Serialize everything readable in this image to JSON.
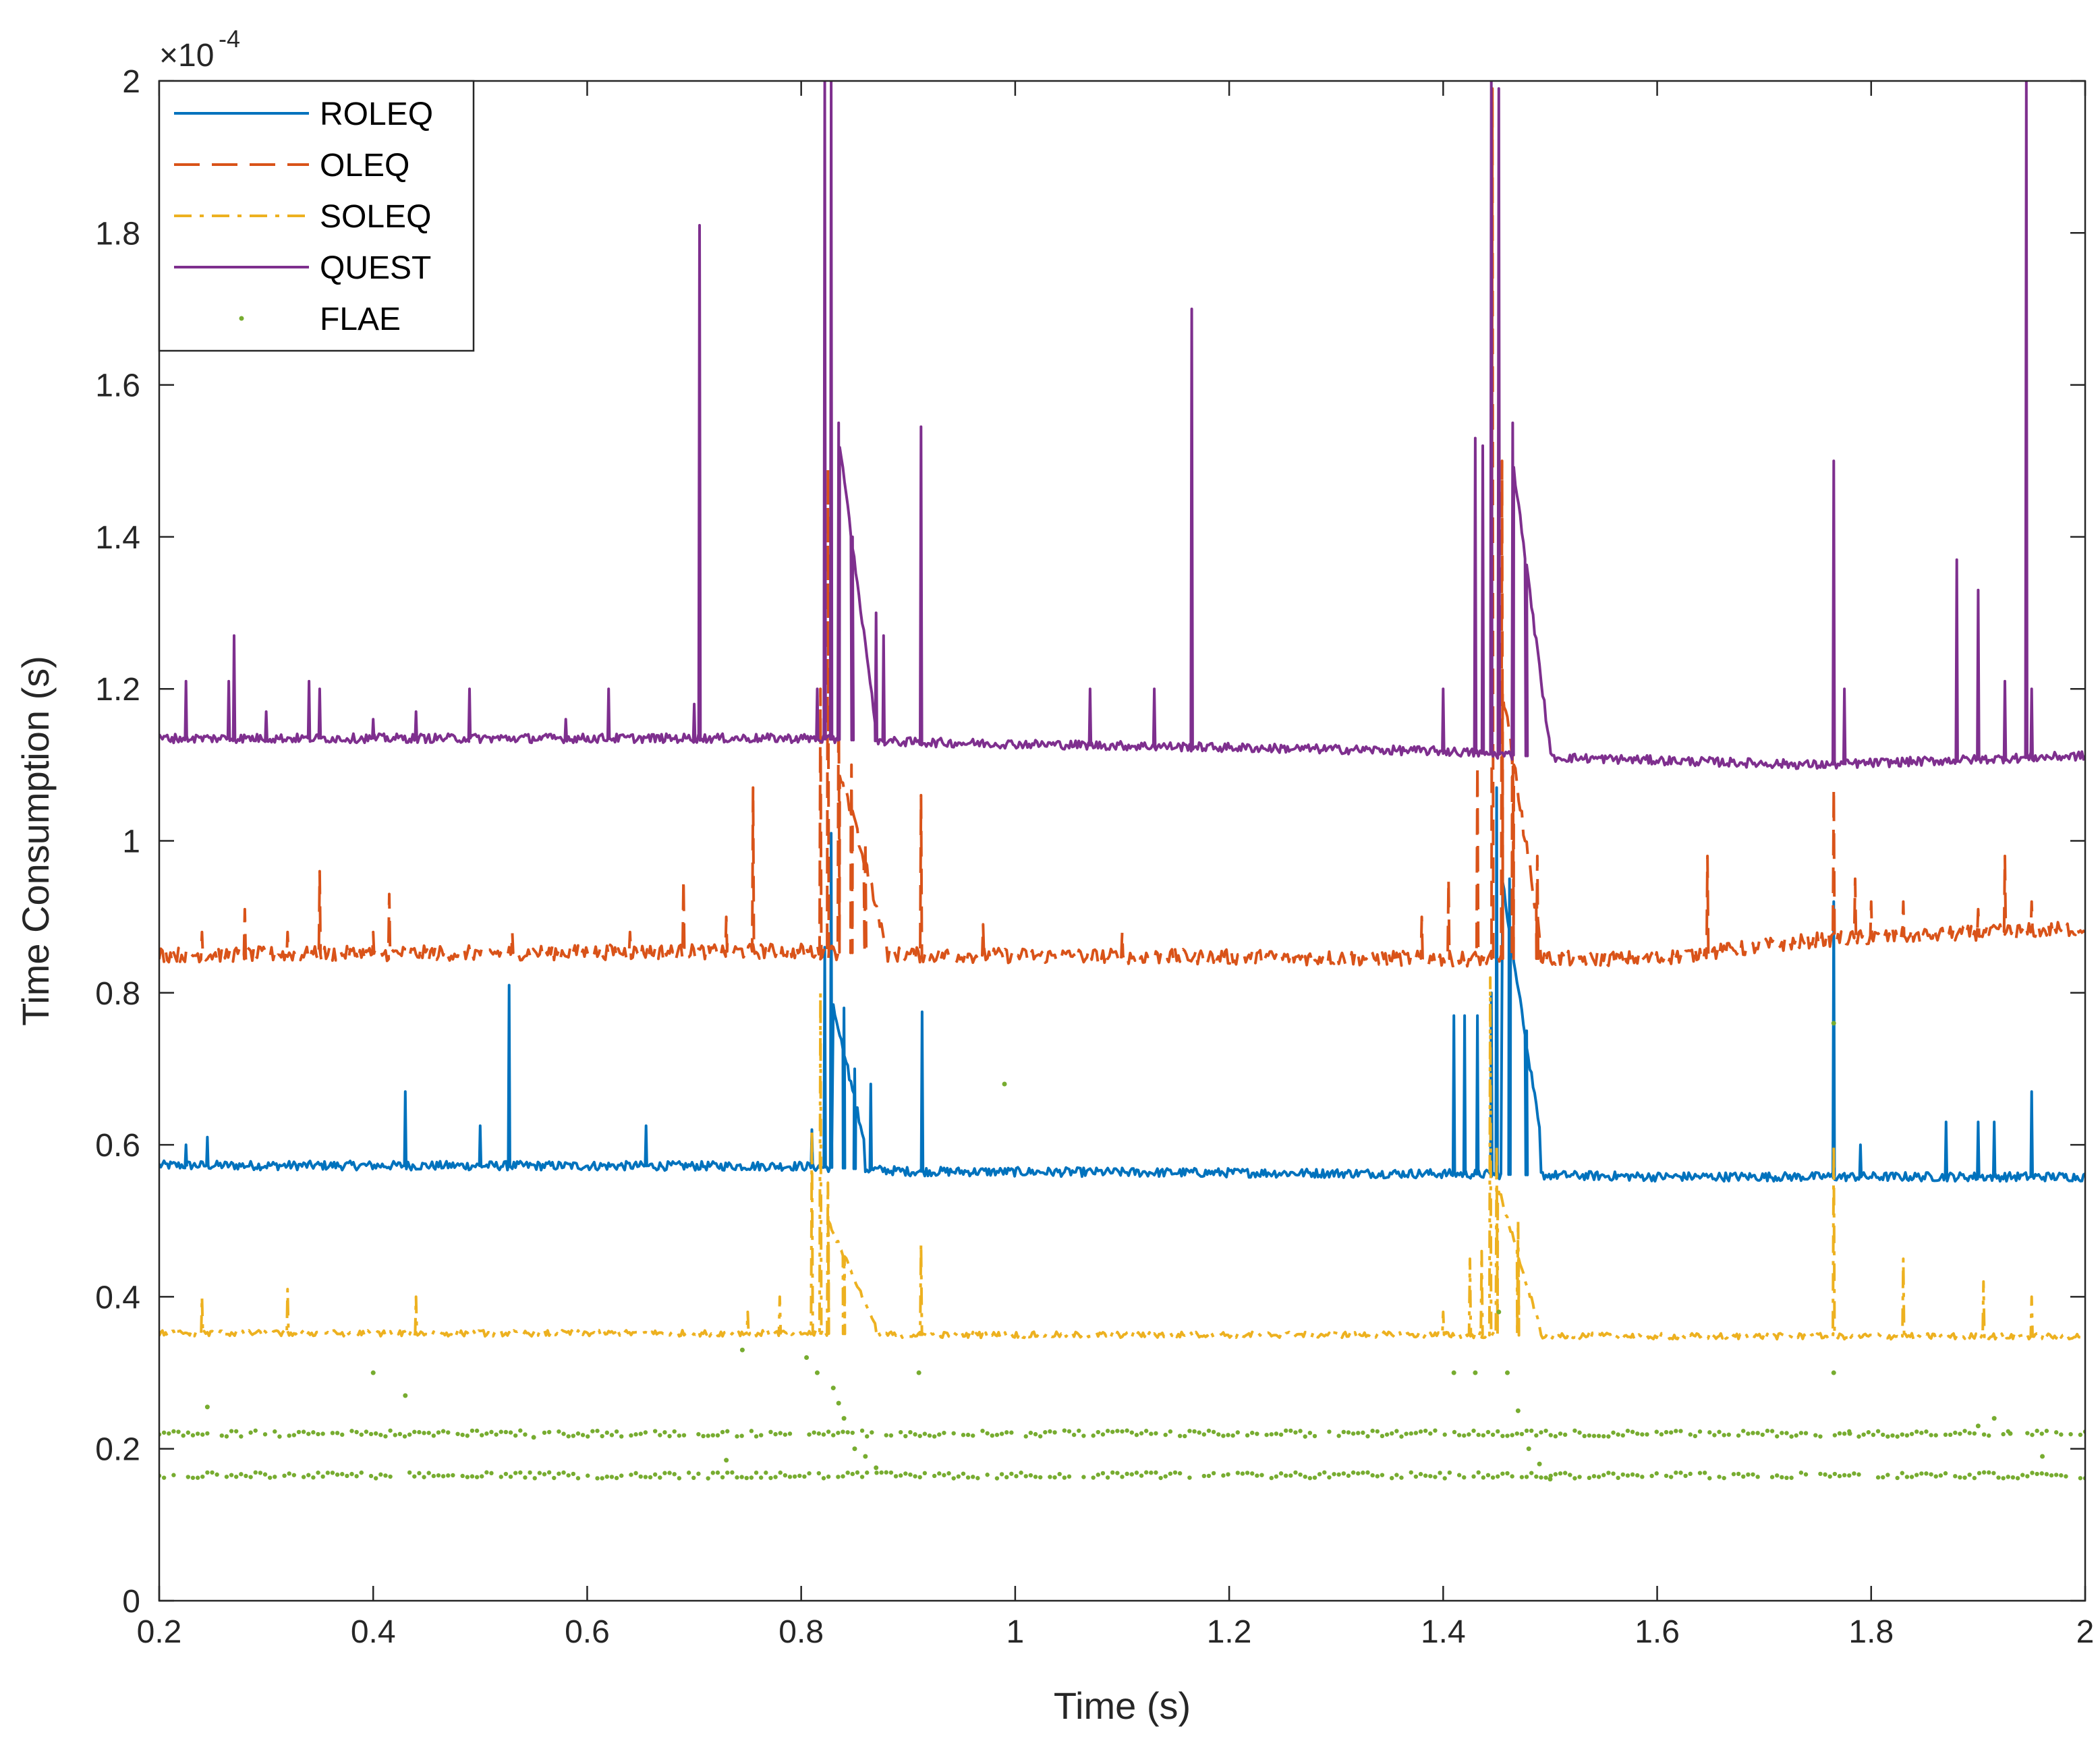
{
  "chart_data": {
    "type": "line",
    "title": "",
    "xlabel": "Time (s)",
    "ylabel": "Time Consumption (s)",
    "xlim": [
      0.2,
      2
    ],
    "ylim": [
      0,
      2
    ],
    "y_exponent_label": "×10",
    "y_exponent_power": "-4",
    "x_ticks": [
      0.2,
      0.4,
      0.6,
      0.8,
      1,
      1.2,
      1.4,
      1.6,
      1.8,
      2
    ],
    "x_tick_labels": [
      "0.2",
      "0.4",
      "0.6",
      "0.8",
      "1",
      "1.2",
      "1.4",
      "1.6",
      "1.8",
      "2"
    ],
    "y_ticks": [
      0,
      0.2,
      0.4,
      0.6,
      0.8,
      1,
      1.2,
      1.4,
      1.6,
      1.8,
      2
    ],
    "y_tick_labels": [
      "0",
      "0.2",
      "0.4",
      "0.6",
      "0.8",
      "1",
      "1.2",
      "1.4",
      "1.6",
      "1.8",
      "2"
    ],
    "grid": false,
    "legend_position": "top-left",
    "series": [
      {
        "name": "ROLEQ",
        "color": "#0072BD",
        "style": "solid",
        "baseline": [
          [
            0.2,
            0.573
          ],
          [
            0.8,
            0.572
          ],
          [
            0.9,
            0.565
          ],
          [
            1.4,
            0.562
          ],
          [
            1.6,
            0.558
          ],
          [
            2.0,
            0.558
          ]
        ],
        "noise": 0.006,
        "spikes": [
          [
            0.225,
            0.6
          ],
          [
            0.245,
            0.61
          ],
          [
            0.43,
            0.67
          ],
          [
            0.5,
            0.625
          ],
          [
            0.527,
            0.81
          ],
          [
            0.655,
            0.625
          ],
          [
            0.81,
            0.62
          ],
          [
            0.822,
            0.86
          ],
          [
            0.828,
            1.01
          ],
          [
            0.84,
            0.78
          ],
          [
            0.85,
            0.7
          ],
          [
            0.865,
            0.68
          ],
          [
            0.913,
            0.775
          ],
          [
            1.41,
            0.77
          ],
          [
            1.42,
            0.77
          ],
          [
            1.432,
            0.77
          ],
          [
            1.445,
            0.8
          ],
          [
            1.45,
            1.07
          ],
          [
            1.462,
            0.95
          ],
          [
            1.478,
            0.75
          ],
          [
            1.765,
            0.92
          ],
          [
            1.79,
            0.6
          ],
          [
            1.87,
            0.63
          ],
          [
            1.9,
            0.63
          ],
          [
            1.915,
            0.63
          ],
          [
            1.95,
            0.67
          ]
        ],
        "ramps": [
          [
            0.83,
            0.86,
            0.78,
            0.6
          ],
          [
            1.455,
            1.49,
            0.95,
            0.62
          ]
        ]
      },
      {
        "name": "OLEQ",
        "color": "#D95319",
        "style": "dashed",
        "baseline": [
          [
            0.2,
            0.85
          ],
          [
            0.8,
            0.855
          ],
          [
            0.9,
            0.85
          ],
          [
            1.4,
            0.845
          ],
          [
            1.6,
            0.845
          ],
          [
            1.75,
            0.87
          ],
          [
            2.0,
            0.885
          ]
        ],
        "noise": 0.01,
        "spikes": [
          [
            0.24,
            0.88
          ],
          [
            0.28,
            0.91
          ],
          [
            0.32,
            0.88
          ],
          [
            0.35,
            0.96
          ],
          [
            0.4,
            0.88
          ],
          [
            0.415,
            0.93
          ],
          [
            0.53,
            0.88
          ],
          [
            0.64,
            0.88
          ],
          [
            0.69,
            0.95
          ],
          [
            0.73,
            0.9
          ],
          [
            0.755,
            1.07
          ],
          [
            0.818,
            1.2
          ],
          [
            0.825,
            1.49
          ],
          [
            0.835,
            1.25
          ],
          [
            0.847,
            1.1
          ],
          [
            0.86,
            1.0
          ],
          [
            0.912,
            1.06
          ],
          [
            0.97,
            0.89
          ],
          [
            1.1,
            0.88
          ],
          [
            1.38,
            0.9
          ],
          [
            1.405,
            0.95
          ],
          [
            1.432,
            1.1
          ],
          [
            1.446,
            1.99
          ],
          [
            1.455,
            1.5
          ],
          [
            1.465,
            1.2
          ],
          [
            1.488,
            0.98
          ],
          [
            1.647,
            0.98
          ],
          [
            1.765,
            1.07
          ],
          [
            1.785,
            0.95
          ],
          [
            1.8,
            0.92
          ],
          [
            1.83,
            0.92
          ],
          [
            1.9,
            0.91
          ],
          [
            1.925,
            0.98
          ],
          [
            1.95,
            0.92
          ]
        ],
        "ramps": [
          [
            0.835,
            0.88,
            1.1,
            0.86
          ],
          [
            1.455,
            1.49,
            1.2,
            0.88
          ]
        ]
      },
      {
        "name": "SOLEQ",
        "color": "#EDB120",
        "style": "dashdot",
        "baseline": [
          [
            0.2,
            0.352
          ],
          [
            0.8,
            0.352
          ],
          [
            0.9,
            0.35
          ],
          [
            1.4,
            0.35
          ],
          [
            1.6,
            0.348
          ],
          [
            2.0,
            0.348
          ]
        ],
        "noise": 0.004,
        "spikes": [
          [
            0.24,
            0.4
          ],
          [
            0.32,
            0.41
          ],
          [
            0.44,
            0.4
          ],
          [
            0.75,
            0.38
          ],
          [
            0.78,
            0.4
          ],
          [
            0.81,
            0.62
          ],
          [
            0.818,
            0.8
          ],
          [
            0.825,
            0.55
          ],
          [
            0.84,
            0.45
          ],
          [
            0.912,
            0.47
          ],
          [
            1.4,
            0.38
          ],
          [
            1.425,
            0.45
          ],
          [
            1.436,
            0.46
          ],
          [
            1.444,
            0.82
          ],
          [
            1.45,
            0.6
          ],
          [
            1.47,
            0.5
          ],
          [
            1.765,
            0.6
          ],
          [
            1.83,
            0.45
          ],
          [
            1.905,
            0.42
          ],
          [
            1.95,
            0.4
          ]
        ],
        "ramps": [
          [
            0.825,
            0.87,
            0.5,
            0.36
          ],
          [
            1.45,
            1.49,
            0.55,
            0.36
          ]
        ]
      },
      {
        "name": "QUEST",
        "color": "#7E2F8E",
        "style": "solid",
        "baseline": [
          [
            0.2,
            1.135
          ],
          [
            0.8,
            1.135
          ],
          [
            0.9,
            1.13
          ],
          [
            1.4,
            1.118
          ],
          [
            1.5,
            1.11
          ],
          [
            1.75,
            1.1
          ],
          [
            2.0,
            1.112
          ]
        ],
        "noise": 0.006,
        "spikes": [
          [
            0.225,
            1.21
          ],
          [
            0.265,
            1.21
          ],
          [
            0.27,
            1.27
          ],
          [
            0.3,
            1.17
          ],
          [
            0.34,
            1.21
          ],
          [
            0.35,
            1.2
          ],
          [
            0.4,
            1.16
          ],
          [
            0.44,
            1.17
          ],
          [
            0.49,
            1.2
          ],
          [
            0.58,
            1.16
          ],
          [
            0.62,
            1.2
          ],
          [
            0.7,
            1.18
          ],
          [
            0.705,
            1.81
          ],
          [
            0.815,
            1.2
          ],
          [
            0.822,
            2.0
          ],
          [
            0.828,
            2.0
          ],
          [
            0.835,
            1.55
          ],
          [
            0.848,
            1.4
          ],
          [
            0.87,
            1.3
          ],
          [
            0.877,
            1.27
          ],
          [
            0.912,
            1.545
          ],
          [
            1.07,
            1.2
          ],
          [
            1.13,
            1.2
          ],
          [
            1.165,
            1.7
          ],
          [
            1.4,
            1.2
          ],
          [
            1.43,
            1.53
          ],
          [
            1.437,
            1.52
          ],
          [
            1.445,
            2.0
          ],
          [
            1.452,
            1.99
          ],
          [
            1.465,
            1.55
          ],
          [
            1.478,
            1.3
          ],
          [
            1.765,
            1.5
          ],
          [
            1.775,
            1.2
          ],
          [
            1.88,
            1.37
          ],
          [
            1.9,
            1.33
          ],
          [
            1.925,
            1.21
          ],
          [
            1.945,
            2.0
          ],
          [
            1.95,
            1.2
          ]
        ],
        "ramps": [
          [
            0.835,
            0.87,
            1.53,
            1.15
          ],
          [
            1.465,
            1.5,
            1.5,
            1.12
          ]
        ]
      },
      {
        "name": "FLAE",
        "color": "#77AC30",
        "style": "points",
        "bands": [
          0.22,
          0.165
        ],
        "bands_range": [
          0.2,
          2.0
        ],
        "scatter": [
          [
            0.245,
            0.255
          ],
          [
            0.4,
            0.3
          ],
          [
            0.43,
            0.27
          ],
          [
            0.55,
            0.215
          ],
          [
            0.73,
            0.185
          ],
          [
            0.745,
            0.33
          ],
          [
            0.805,
            0.32
          ],
          [
            0.815,
            0.3
          ],
          [
            0.83,
            0.28
          ],
          [
            0.835,
            0.26
          ],
          [
            0.84,
            0.24
          ],
          [
            0.85,
            0.2
          ],
          [
            0.86,
            0.19
          ],
          [
            0.87,
            0.175
          ],
          [
            0.91,
            0.3
          ],
          [
            0.99,
            0.68
          ],
          [
            1.41,
            0.3
          ],
          [
            1.43,
            0.3
          ],
          [
            1.452,
            0.38
          ],
          [
            1.46,
            0.3
          ],
          [
            1.47,
            0.25
          ],
          [
            1.48,
            0.2
          ],
          [
            1.49,
            0.18
          ],
          [
            1.5,
            0.16
          ],
          [
            1.765,
            0.76
          ],
          [
            1.765,
            0.3
          ],
          [
            1.78,
            0.22
          ],
          [
            1.9,
            0.23
          ],
          [
            1.915,
            0.24
          ],
          [
            1.93,
            0.22
          ],
          [
            1.96,
            0.19
          ]
        ]
      }
    ]
  }
}
